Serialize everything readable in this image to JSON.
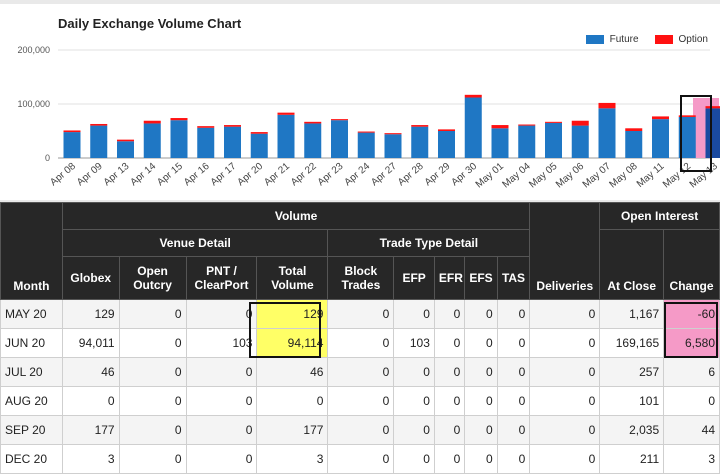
{
  "chart_data": {
    "type": "bar",
    "title": "Daily Exchange Volume Chart",
    "categories": [
      "Apr 08",
      "Apr 09",
      "Apr 13",
      "Apr 14",
      "Apr 15",
      "Apr 16",
      "Apr 17",
      "Apr 20",
      "Apr 21",
      "Apr 22",
      "Apr 23",
      "Apr 24",
      "Apr 27",
      "Apr 28",
      "Apr 29",
      "Apr 30",
      "May 01",
      "May 04",
      "May 05",
      "May 06",
      "May 07",
      "May 08",
      "May 11",
      "May 12",
      "May 13"
    ],
    "series": [
      {
        "name": "Future",
        "color": "#1f77c4",
        "values": [
          48000,
          60000,
          31000,
          64000,
          70000,
          56000,
          58000,
          45000,
          80000,
          64000,
          70000,
          47000,
          44000,
          58000,
          50000,
          112000,
          55000,
          60000,
          65000,
          60000,
          92000,
          50000,
          72000,
          76000,
          92000
        ]
      },
      {
        "name": "Option",
        "color": "#ff1111",
        "values": [
          3000,
          3000,
          3000,
          5000,
          4000,
          3000,
          3000,
          3000,
          4000,
          3000,
          2000,
          2000,
          2000,
          3000,
          3000,
          5000,
          6000,
          2000,
          2000,
          9000,
          10000,
          5000,
          5000,
          3000,
          4000
        ]
      }
    ],
    "yticks": [
      "0",
      "100,000",
      "200,000"
    ],
    "ylim": [
      0,
      200000
    ],
    "stacked": true,
    "legend": "top-right",
    "grid": true
  },
  "table": {
    "headers": {
      "month": "Month",
      "volume": "Volume",
      "venue_detail": "Venue Detail",
      "trade_type_detail": "Trade Type Detail",
      "globex": "Globex",
      "open_outcry": "Open Outcry",
      "pnt_clearport": "PNT / ClearPort",
      "total_volume": "Total Volume",
      "block_trades": "Block Trades",
      "efp": "EFP",
      "efr": "EFR",
      "efs": "EFS",
      "tas": "TAS",
      "deliveries": "Deliveries",
      "open_interest": "Open Interest",
      "at_close": "At Close",
      "change": "Change"
    },
    "rows": [
      [
        "MAY 20",
        "129",
        "0",
        "0",
        "129",
        "0",
        "0",
        "0",
        "0",
        "0",
        "0",
        "1,167",
        "-60"
      ],
      [
        "JUN 20",
        "94,011",
        "0",
        "103",
        "94,114",
        "0",
        "103",
        "0",
        "0",
        "0",
        "0",
        "169,165",
        "6,580"
      ],
      [
        "JUL 20",
        "46",
        "0",
        "0",
        "46",
        "0",
        "0",
        "0",
        "0",
        "0",
        "0",
        "257",
        "6"
      ],
      [
        "AUG 20",
        "0",
        "0",
        "0",
        "0",
        "0",
        "0",
        "0",
        "0",
        "0",
        "0",
        "101",
        "0"
      ],
      [
        "SEP 20",
        "177",
        "0",
        "0",
        "177",
        "0",
        "0",
        "0",
        "0",
        "0",
        "0",
        "2,035",
        "44"
      ],
      [
        "DEC 20",
        "3",
        "0",
        "0",
        "3",
        "0",
        "0",
        "0",
        "0",
        "0",
        "0",
        "211",
        "3"
      ]
    ]
  },
  "highlight_colors": {
    "total_volume": "#ffff66",
    "change": "#f59ac7",
    "last_bar": "#f59ac7"
  }
}
